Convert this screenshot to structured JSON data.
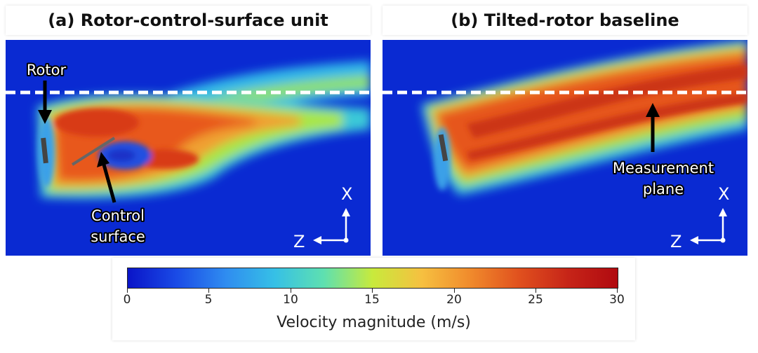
{
  "panel_a": {
    "title": "(a) Rotor-control-surface unit",
    "label_rotor": "Rotor",
    "label_control_1": "Control",
    "label_control_2": "surface",
    "axis_x": "X",
    "axis_z": "Z"
  },
  "panel_b": {
    "title": "(b) Tilted-rotor baseline",
    "label_measure_1": "Measurement",
    "label_measure_2": "plane",
    "axis_x": "X",
    "axis_z": "Z"
  },
  "colorbar": {
    "label": "Velocity magnitude (m/s)",
    "ticks": [
      "0",
      "5",
      "10",
      "15",
      "20",
      "25",
      "30"
    ],
    "range": [
      0,
      30
    ],
    "colormap": "jet"
  }
}
